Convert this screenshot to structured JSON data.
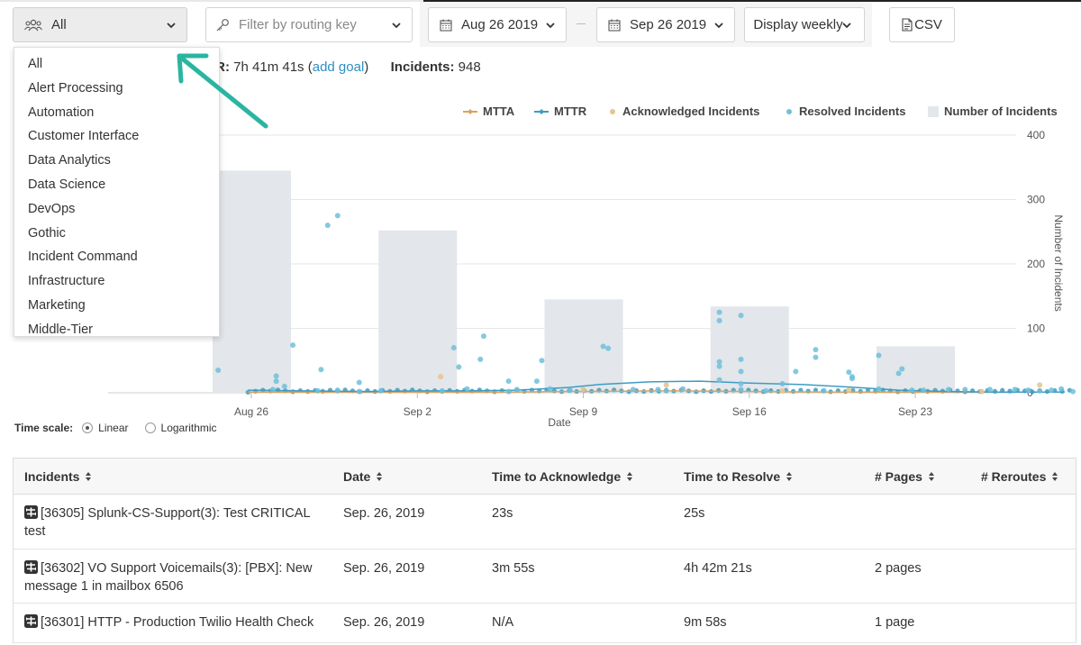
{
  "toolbar": {
    "team_filter": {
      "value": "All",
      "icon": "team-icon"
    },
    "routing_filter": {
      "placeholder": "Filter by routing key",
      "icon": "key-icon"
    },
    "start_date": "Aug 26 2019",
    "end_date": "Sep 26 2019",
    "display_mode": "Display weekly",
    "csv_label": "CSV"
  },
  "team_dropdown": {
    "items": [
      "All",
      "Alert Processing",
      "Automation",
      "Customer Interface",
      "Data Analytics",
      "Data Science",
      "DevOps",
      "Gothic",
      "Incident Command",
      "Infrastructure",
      "Marketing",
      "Middle-Tier"
    ]
  },
  "stats": {
    "mttr_prefix": "TR:",
    "mttr_value": "7h 41m 41s",
    "open_paren": "(",
    "add_goal": "add goal",
    "close_paren": ")",
    "incidents_label": "Incidents:",
    "incidents_value": "948"
  },
  "legend": {
    "mtta": "MTTA",
    "mttr": "MTTR",
    "acknowledged": "Acknowledged Incidents",
    "resolved": "Resolved Incidents",
    "number": "Number of Incidents"
  },
  "colors": {
    "mtta": "#d9a35f",
    "mttr": "#3d9cc2",
    "acknowledged": "#e8c48f",
    "resolved": "#6fc0da",
    "bars": "#e3e6ea",
    "accent": "#2d8fc4",
    "arrow": "#2bb5a0"
  },
  "chart_data": {
    "type": "bar",
    "xlabel": "Date",
    "ylabel": "Number of Incidents",
    "ylim": [
      0,
      400
    ],
    "y_ticks": [
      0,
      100,
      200,
      300,
      400
    ],
    "x_ticks": [
      "Aug 26",
      "Sep 2",
      "Sep 9",
      "Sep 16",
      "Sep 23"
    ],
    "grid": true,
    "legend_position": "top-right",
    "series": [
      {
        "name": "Number of Incidents",
        "type": "bar",
        "categories": [
          "Aug 26",
          "Sep 2",
          "Sep 9",
          "Sep 16",
          "Sep 23"
        ],
        "values": [
          345,
          252,
          145,
          134,
          72
        ]
      },
      {
        "name": "Resolved Incidents",
        "type": "scatter",
        "points": [
          [
            -0.2,
            35
          ],
          [
            0.15,
            26
          ],
          [
            0.15,
            18
          ],
          [
            0.2,
            10
          ],
          [
            0.13,
            5
          ],
          [
            0.25,
            74
          ],
          [
            0.4,
            3
          ],
          [
            0.42,
            36
          ],
          [
            0.46,
            260
          ],
          [
            0.52,
            4
          ],
          [
            0.52,
            275
          ],
          [
            0.65,
            16
          ],
          [
            0.65,
            2
          ],
          [
            0.78,
            3
          ],
          [
            1.15,
            3
          ],
          [
            1.22,
            70
          ],
          [
            1.25,
            40
          ],
          [
            1.3,
            6
          ],
          [
            1.4,
            88
          ],
          [
            1.38,
            52
          ],
          [
            1.55,
            18
          ],
          [
            1.55,
            2
          ],
          [
            1.6,
            5
          ],
          [
            1.72,
            18
          ],
          [
            1.75,
            50
          ],
          [
            1.8,
            6
          ],
          [
            1.92,
            4
          ],
          [
            2.12,
            72
          ],
          [
            2.15,
            69
          ],
          [
            2.3,
            5
          ],
          [
            2.45,
            5
          ],
          [
            2.5,
            3
          ],
          [
            2.6,
            6
          ],
          [
            2.82,
            125
          ],
          [
            2.82,
            112
          ],
          [
            2.82,
            48
          ],
          [
            2.82,
            41
          ],
          [
            2.82,
            20
          ],
          [
            2.95,
            120
          ],
          [
            2.95,
            52
          ],
          [
            2.95,
            33
          ],
          [
            2.95,
            14
          ],
          [
            2.95,
            5
          ],
          [
            3.1,
            3
          ],
          [
            3.2,
            14
          ],
          [
            3.28,
            33
          ],
          [
            3.4,
            67
          ],
          [
            3.4,
            55
          ],
          [
            3.45,
            3
          ],
          [
            3.6,
            32
          ],
          [
            3.62,
            25
          ],
          [
            3.62,
            22
          ],
          [
            3.78,
            58
          ],
          [
            3.78,
            6
          ],
          [
            3.9,
            30
          ],
          [
            3.92,
            37
          ],
          [
            3.98,
            4
          ],
          [
            4.05,
            4
          ],
          [
            4.2,
            5
          ],
          [
            4.3,
            5
          ],
          [
            4.45,
            5
          ],
          [
            4.6,
            5
          ],
          [
            4.68,
            4
          ],
          [
            4.75,
            3
          ],
          [
            4.82,
            4
          ],
          [
            4.88,
            6
          ],
          [
            4.95,
            2
          ]
        ]
      },
      {
        "name": "Acknowledged Incidents",
        "type": "scatter",
        "points": [
          [
            1.14,
            25
          ],
          [
            2.0,
            5
          ],
          [
            2.5,
            12
          ],
          [
            3.2,
            3
          ],
          [
            3.6,
            4
          ],
          [
            4.4,
            2
          ],
          [
            4.75,
            12
          ]
        ]
      },
      {
        "name": "MTTR",
        "type": "line",
        "x": [
          -0.02,
          0.3,
          0.7,
          1.0,
          1.3,
          1.6,
          1.9,
          2.1,
          2.4,
          2.7,
          3.0,
          3.3,
          3.6,
          3.9,
          4.2,
          4.5,
          4.9
        ],
        "y": [
          4,
          3,
          2,
          3,
          3,
          4,
          8,
          13,
          17,
          18,
          15,
          13,
          9,
          4,
          2,
          1,
          1
        ]
      },
      {
        "name": "MTTA",
        "type": "line",
        "x": [
          -0.02,
          0.5,
          1.0,
          1.5,
          2.0,
          2.5,
          3.0,
          3.5,
          4.0,
          4.5,
          4.9
        ],
        "y": [
          1,
          1,
          1,
          1,
          2,
          3,
          2,
          1,
          1,
          1,
          1
        ]
      }
    ]
  },
  "time_scale": {
    "label": "Time scale:",
    "options": [
      "Linear",
      "Logarithmic"
    ],
    "selected": "Linear"
  },
  "table": {
    "headers": [
      "Incidents",
      "Date",
      "Time to Acknowledge",
      "Time to Resolve",
      "# Pages",
      "# Reroutes"
    ],
    "rows": [
      {
        "incident": "[36305] Splunk-CS-Support(3): Test CRITICAL test",
        "date": "Sep. 26, 2019",
        "ack": "23s",
        "resolve": "25s",
        "pages": "",
        "reroutes": ""
      },
      {
        "incident": "[36302] VO Support Voicemails(3): [PBX]: New message 1 in mailbox 6506",
        "date": "Sep. 26, 2019",
        "ack": "3m 55s",
        "resolve": "4h 42m 21s",
        "pages": "2 pages",
        "reroutes": ""
      },
      {
        "incident": "[36301] HTTP - Production Twilio Health Check",
        "date": "Sep. 26, 2019",
        "ack": "N/A",
        "resolve": "9m 58s",
        "pages": "1 page",
        "reroutes": ""
      }
    ]
  }
}
